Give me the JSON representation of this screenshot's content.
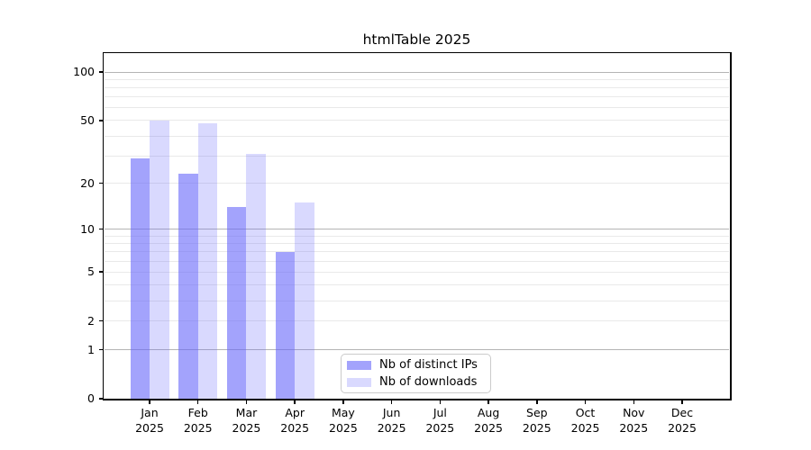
{
  "figure": {
    "title": "htmlTable 2025"
  },
  "chart_data": {
    "type": "bar",
    "title": "htmlTable 2025",
    "categories": [
      "Jan 2025",
      "Feb 2025",
      "Mar 2025",
      "Apr 2025",
      "May 2025",
      "Jun 2025",
      "Jul 2025",
      "Aug 2025",
      "Sep 2025",
      "Oct 2025",
      "Nov 2025",
      "Dec 2025"
    ],
    "series": [
      {
        "name": "Nb of distinct IPs",
        "color": "rgba(102,102,250,0.6)",
        "values": [
          29,
          23,
          14,
          7
        ]
      },
      {
        "name": "Nb of downloads",
        "color": "rgba(102,102,250,0.25)",
        "values": [
          50,
          48,
          31,
          15
        ]
      }
    ],
    "xlabel": "",
    "ylabel": "",
    "y_axis": {
      "scale": "log1p",
      "tick_labels": [
        0,
        1,
        2,
        5,
        10,
        20,
        50,
        100
      ],
      "major_gridlines": [
        1,
        10,
        100
      ],
      "minor_gridlines": [
        2,
        3,
        4,
        5,
        6,
        7,
        8,
        9,
        20,
        30,
        40,
        50,
        60,
        70,
        80,
        90
      ],
      "ylim": [
        0,
        130
      ]
    },
    "legend": {
      "position": "lower center-left",
      "entries": [
        "Nb of distinct IPs",
        "Nb of downloads"
      ]
    },
    "grid": true,
    "colors": {
      "grid_major": "#b4b4b4",
      "grid_minor": "#e9e9e9",
      "axis": "#000000",
      "background": "#ffffff",
      "text": "#000000"
    }
  }
}
